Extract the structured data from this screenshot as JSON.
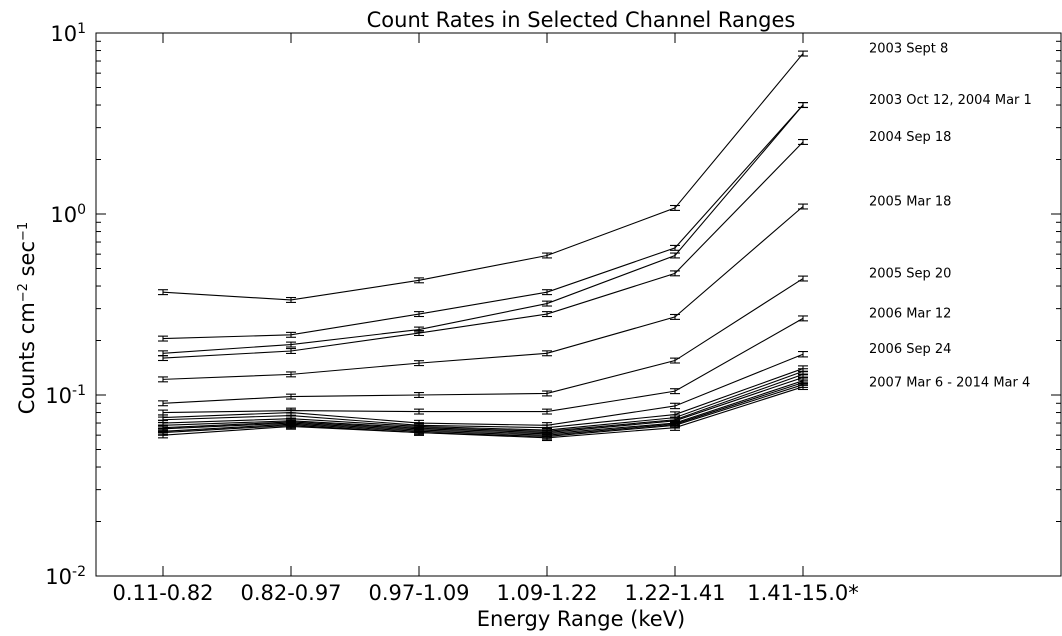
{
  "chart_data": {
    "type": "line",
    "title": "Count Rates in Selected Channel Ranges",
    "xlabel": "Energy Range (keV)",
    "ylabel": "Counts cm−2 sec−1",
    "ylabel_parts": {
      "main": "Counts cm",
      "exp1": "−2",
      "mid": " sec",
      "exp2": "−1"
    },
    "yscale": "log",
    "ylim": [
      0.01,
      10
    ],
    "yticks": [
      {
        "base": "10",
        "exp": "-2",
        "value": 0.01
      },
      {
        "base": "10",
        "exp": "-1",
        "value": 0.1
      },
      {
        "base": "10",
        "exp": "0",
        "value": 1
      },
      {
        "base": "10",
        "exp": "1",
        "value": 10
      }
    ],
    "categories": [
      "0.11-0.82",
      "0.82-0.97",
      "0.97-1.09",
      "1.09-1.22",
      "1.22-1.41",
      "1.41-15.0*"
    ],
    "grid": false,
    "legend": "none",
    "series": [
      {
        "values": [
          0.37,
          0.335,
          0.43,
          0.59,
          1.08,
          7.7
        ],
        "err": 0.012
      },
      {
        "values": [
          0.205,
          0.215,
          0.28,
          0.37,
          0.65,
          4.0
        ],
        "err": 0.012
      },
      {
        "values": [
          0.17,
          0.19,
          0.23,
          0.32,
          0.59,
          4.0
        ],
        "err": 0.012
      },
      {
        "values": [
          0.16,
          0.175,
          0.22,
          0.28,
          0.47,
          2.5
        ],
        "err": 0.012
      },
      {
        "values": [
          0.122,
          0.13,
          0.15,
          0.17,
          0.27,
          1.1
        ],
        "err": 0.012
      },
      {
        "values": [
          0.09,
          0.098,
          0.1,
          0.102,
          0.155,
          0.44
        ],
        "err": 0.012
      },
      {
        "values": [
          0.08,
          0.082,
          0.081,
          0.081,
          0.105,
          0.265
        ],
        "err": 0.012
      },
      {
        "values": [
          0.075,
          0.08,
          0.07,
          0.068,
          0.087,
          0.168
        ],
        "err": 0.015
      },
      {
        "values": [
          0.073,
          0.077,
          0.068,
          0.066,
          0.078,
          0.14
        ],
        "err": 0.015
      },
      {
        "values": [
          0.07,
          0.074,
          0.067,
          0.064,
          0.075,
          0.135
        ],
        "err": 0.015
      },
      {
        "values": [
          0.068,
          0.072,
          0.066,
          0.063,
          0.073,
          0.13
        ],
        "err": 0.015
      },
      {
        "values": [
          0.066,
          0.071,
          0.065,
          0.062,
          0.072,
          0.125
        ],
        "err": 0.015
      },
      {
        "values": [
          0.065,
          0.07,
          0.064,
          0.061,
          0.07,
          0.12
        ],
        "err": 0.015
      },
      {
        "values": [
          0.063,
          0.069,
          0.063,
          0.06,
          0.069,
          0.117
        ],
        "err": 0.015
      },
      {
        "values": [
          0.062,
          0.068,
          0.062,
          0.059,
          0.068,
          0.114
        ],
        "err": 0.015
      },
      {
        "values": [
          0.06,
          0.067,
          0.062,
          0.058,
          0.066,
          0.111
        ],
        "err": 0.015
      }
    ],
    "annotations": [
      {
        "text": "2003 Sept 8",
        "y": 7.7
      },
      {
        "text": "2003 Oct 12, 2004 Mar 1",
        "y": 4.0
      },
      {
        "text": "2004 Sep 18",
        "y": 2.5
      },
      {
        "text": "2005 Mar 18",
        "y": 1.1
      },
      {
        "text": "2005 Sep 20",
        "y": 0.44
      },
      {
        "text": "2006 Mar 12",
        "y": 0.265
      },
      {
        "text": "2006 Sep 24",
        "y": 0.168
      },
      {
        "text": "2007 Mar 6 - 2014 Mar 4",
        "y": 0.11
      }
    ]
  }
}
